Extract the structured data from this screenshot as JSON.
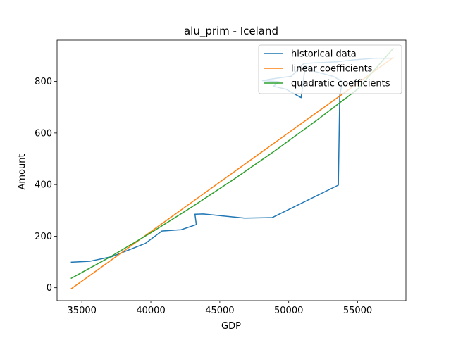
{
  "chart_data": {
    "type": "line",
    "title": "alu_prim - Iceland",
    "xlabel": "GDP",
    "ylabel": "Amount",
    "xlim": [
      33200,
      58500
    ],
    "ylim": [
      -50,
      960
    ],
    "xticks": [
      35000,
      40000,
      45000,
      50000,
      55000
    ],
    "yticks": [
      0,
      200,
      400,
      600,
      800
    ],
    "xtick_labels": [
      "35000",
      "40000",
      "45000",
      "50000",
      "55000"
    ],
    "ytick_labels": [
      "0",
      "200",
      "400",
      "600",
      "800"
    ],
    "legend_position": "top-right",
    "grid": false,
    "series": [
      {
        "name": "historical data",
        "color": "#1f77b4",
        "x": [
          34200,
          35600,
          37200,
          39600,
          40800,
          42200,
          43300,
          43200,
          43800,
          46800,
          48800,
          53600,
          53700,
          53900,
          53200,
          51800,
          51200,
          50900,
          49800,
          48900,
          49300,
          48100,
          48800,
          50200,
          51100,
          53500,
          54100,
          54800,
          55600,
          56300,
          57600
        ],
        "y": [
          99,
          103,
          121,
          172,
          220,
          225,
          245,
          285,
          286,
          270,
          272,
          398,
          745,
          800,
          820,
          840,
          860,
          737,
          770,
          781,
          799,
          803,
          810,
          820,
          870,
          876,
          880,
          884,
          887,
          890,
          890
        ]
      },
      {
        "name": "linear coefficients",
        "color": "#ff7f0e",
        "x": [
          34200,
          57600
        ],
        "y": [
          -5,
          893
        ]
      },
      {
        "name": "quadratic coefficients",
        "color": "#2ca02c",
        "x": [
          34200,
          37000,
          40000,
          43000,
          46000,
          49000,
          52000,
          55000,
          57600
        ],
        "y": [
          36,
          118,
          213,
          314,
          420,
          531,
          648,
          770,
          929
        ]
      }
    ]
  }
}
